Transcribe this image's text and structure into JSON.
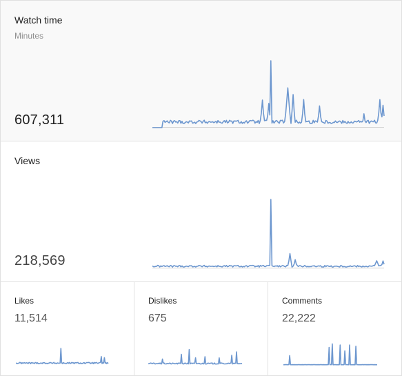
{
  "cards": {
    "watch_time": {
      "title": "Watch time",
      "subtitle": "Minutes",
      "value": "607,311"
    },
    "views": {
      "title": "Views",
      "value": "218,569"
    },
    "likes": {
      "title": "Likes",
      "value": "11,514"
    },
    "dislikes": {
      "title": "Dislikes",
      "value": "675"
    },
    "comments": {
      "title": "Comments",
      "value": "22,222"
    }
  },
  "colors": {
    "line": "#6d97cf",
    "baseline": "#d0d0d0",
    "divider": "#e0e0e0",
    "highlight_bg": "#f9f9f9"
  }
}
